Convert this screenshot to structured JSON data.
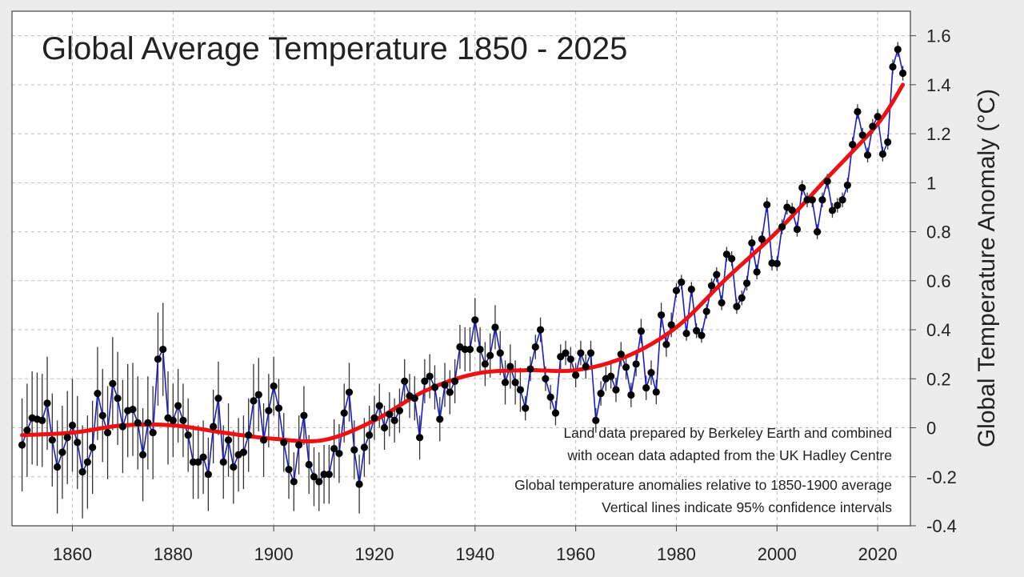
{
  "chart_data": {
    "type": "line",
    "title": "Global Average Temperature 1850 - 2025",
    "xlabel": "",
    "ylabel": "Global  Temperature  Anomaly  (°C)",
    "xlim": [
      1848,
      2026.5
    ],
    "ylim": [
      -0.4,
      1.7
    ],
    "x_ticks": [
      "1860",
      "1880",
      "1900",
      "1920",
      "1940",
      "1960",
      "1980",
      "2000",
      "2020"
    ],
    "y_ticks": [
      "1.6",
      "1.4",
      "1.2",
      "1",
      "0.8",
      "0.6",
      "0.4",
      "0.2",
      "0",
      "-0.2",
      "-0.4"
    ],
    "y_axis_side": "right",
    "grid": true,
    "colors": {
      "annual_line": "#1a1ad0",
      "annual_points": "#000000",
      "error_bars": "#333333",
      "trend": "#ee1111"
    },
    "annual": {
      "start_year": 1850,
      "values": [
        -0.07,
        -0.01,
        0.04,
        0.035,
        0.03,
        0.1,
        -0.05,
        -0.16,
        -0.1,
        -0.04,
        0.01,
        -0.06,
        -0.18,
        -0.14,
        -0.08,
        0.14,
        0.05,
        -0.02,
        0.18,
        0.12,
        0.005,
        0.07,
        0.075,
        0.02,
        -0.11,
        0.02,
        -0.02,
        0.28,
        0.32,
        0.04,
        0.03,
        0.09,
        0.03,
        -0.03,
        -0.14,
        -0.14,
        -0.12,
        -0.19,
        0.005,
        0.12,
        -0.14,
        -0.05,
        -0.16,
        -0.11,
        -0.1,
        -0.03,
        0.11,
        0.135,
        -0.05,
        0.07,
        0.17,
        0.08,
        -0.06,
        -0.17,
        -0.22,
        -0.07,
        0.05,
        -0.15,
        -0.2,
        -0.22,
        -0.19,
        -0.19,
        -0.085,
        -0.105,
        0.06,
        0.145,
        -0.09,
        -0.23,
        -0.08,
        -0.03,
        0.04,
        0.09,
        0.0,
        0.055,
        0.03,
        0.07,
        0.19,
        0.13,
        0.12,
        -0.04,
        0.19,
        0.21,
        0.165,
        0.035,
        0.175,
        0.145,
        0.19,
        0.33,
        0.32,
        0.32,
        0.44,
        0.32,
        0.26,
        0.295,
        0.41,
        0.305,
        0.185,
        0.25,
        0.185,
        0.155,
        0.08,
        0.24,
        0.33,
        0.4,
        0.2,
        0.125,
        0.06,
        0.29,
        0.305,
        0.28,
        0.215,
        0.305,
        0.25,
        0.305,
        0.03,
        0.14,
        0.2,
        0.21,
        0.155,
        0.3,
        0.247,
        0.134,
        0.26,
        0.394,
        0.163,
        0.225,
        0.146,
        0.46,
        0.34,
        0.42,
        0.56,
        0.594,
        0.385,
        0.565,
        0.396,
        0.377,
        0.475,
        0.58,
        0.625,
        0.51,
        0.708,
        0.69,
        0.495,
        0.53,
        0.59,
        0.754,
        0.636,
        0.77,
        0.91,
        0.672,
        0.67,
        0.82,
        0.9,
        0.888,
        0.81,
        0.98,
        0.93,
        0.93,
        0.8,
        0.93,
        1.006,
        0.887,
        0.908,
        0.93,
        0.99,
        1.156,
        1.29,
        1.194,
        1.113,
        1.23,
        1.27,
        1.117,
        1.166,
        1.473,
        1.544,
        1.447
      ]
    },
    "ci95_halfwidth_by_period": [
      {
        "from": 1850,
        "to": 1879,
        "value": 0.19
      },
      {
        "from": 1880,
        "to": 1899,
        "value": 0.15
      },
      {
        "from": 1900,
        "to": 1919,
        "value": 0.12
      },
      {
        "from": 1920,
        "to": 1949,
        "value": 0.09
      },
      {
        "from": 1950,
        "to": 1979,
        "value": 0.05
      },
      {
        "from": 1980,
        "to": 2025,
        "value": 0.03
      }
    ],
    "trend": {
      "years": [
        1850,
        1860,
        1870,
        1880,
        1890,
        1900,
        1910,
        1920,
        1930,
        1940,
        1950,
        1960,
        1970,
        1980,
        1990,
        2000,
        2010,
        2020,
        2025
      ],
      "values": [
        -0.03,
        -0.02,
        0.01,
        0.01,
        -0.02,
        -0.045,
        -0.05,
        0.03,
        0.15,
        0.22,
        0.235,
        0.235,
        0.29,
        0.41,
        0.61,
        0.8,
        1.02,
        1.24,
        1.4
      ]
    },
    "annotations": [
      "Land data prepared by Berkeley Earth and combined",
      "with ocean data adapted from the UK Hadley Centre",
      "Global temperature anomalies relative to 1850-1900 average",
      "Vertical lines indicate 95% confidence intervals"
    ]
  }
}
